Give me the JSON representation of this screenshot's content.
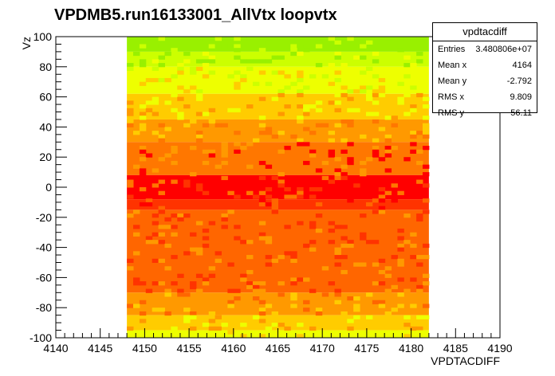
{
  "chart_data": {
    "type": "heatmap",
    "title": "VPDMB5.run16133001_AllVtx loopvtx",
    "xlabel": "VPDTACDIFF",
    "ylabel": "Vz",
    "xlim": [
      4140,
      4190
    ],
    "ylim": [
      -100,
      100
    ],
    "data_x_range": [
      4148,
      4182
    ],
    "x_ticks": [
      "4140",
      "4145",
      "4150",
      "4155",
      "4160",
      "4165",
      "4170",
      "4175",
      "4180",
      "4185",
      "4190"
    ],
    "y_ticks": [
      "-100",
      "-80",
      "-60",
      "-40",
      "-20",
      "0",
      "20",
      "40",
      "60",
      "80",
      "100"
    ],
    "color_bands": [
      {
        "vz_min": 90,
        "vz_max": 100,
        "color": "#99f000"
      },
      {
        "vz_min": 80,
        "vz_max": 90,
        "color": "#ccff00"
      },
      {
        "vz_min": 62,
        "vz_max": 80,
        "color": "#eeff00"
      },
      {
        "vz_min": 45,
        "vz_max": 62,
        "color": "#ffcc00"
      },
      {
        "vz_min": 30,
        "vz_max": 45,
        "color": "#ff9900"
      },
      {
        "vz_min": 8,
        "vz_max": 30,
        "color": "#ff7700"
      },
      {
        "vz_min": -8,
        "vz_max": 8,
        "color": "#ff0000"
      },
      {
        "vz_min": -15,
        "vz_max": -8,
        "color": "#ff3300"
      },
      {
        "vz_min": -70,
        "vz_max": -15,
        "color": "#ff6600"
      },
      {
        "vz_min": -85,
        "vz_max": -70,
        "color": "#ff9900"
      },
      {
        "vz_min": -95,
        "vz_max": -85,
        "color": "#ffcc00"
      },
      {
        "vz_min": -100,
        "vz_max": -95,
        "color": "#eeff00"
      }
    ]
  },
  "stats": {
    "name": "vpdtacdiff",
    "rows": [
      {
        "label": "Entries",
        "value": "3.480806e+07"
      },
      {
        "label": "Mean x",
        "value": "4164"
      },
      {
        "label": "Mean y",
        "value": "-2.792"
      },
      {
        "label": "RMS x",
        "value": "9.809"
      },
      {
        "label": "RMS y",
        "value": "56.11"
      }
    ]
  }
}
